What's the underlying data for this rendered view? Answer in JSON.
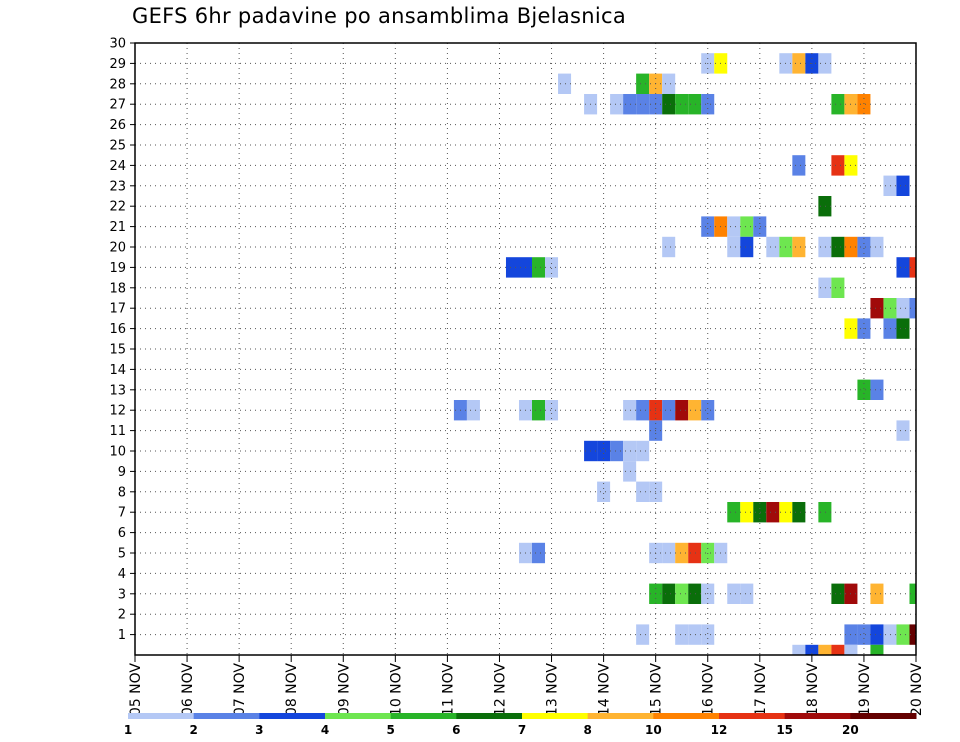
{
  "chart_data": {
    "type": "heatmap",
    "title": "GEFS 6hr padavine po ansamblima Bjelasnica",
    "xlabel": "",
    "ylabel": "",
    "x_tick_labels": [
      "05 NOV",
      "06 NOV",
      "07 NOV",
      "08 NOV",
      "09 NOV",
      "10 NOV",
      "11 NOV",
      "12 NOV",
      "13 NOV",
      "14 NOV",
      "15 NOV",
      "16 NOV",
      "17 NOV",
      "18 NOV",
      "19 NOV",
      "20 NOV"
    ],
    "y_tick_labels": [
      "1",
      "2",
      "3",
      "4",
      "5",
      "6",
      "7",
      "8",
      "9",
      "10",
      "11",
      "12",
      "13",
      "14",
      "15",
      "16",
      "17",
      "18",
      "19",
      "20",
      "21",
      "22",
      "23",
      "24",
      "25",
      "26",
      "27",
      "28",
      "29",
      "30"
    ],
    "xlim_days": [
      5,
      20
    ],
    "ylim": [
      0,
      30
    ],
    "time_step_hours": 6,
    "grid": true,
    "legend_position": "bottom",
    "colorbar": {
      "labels": [
        "1",
        "2",
        "3",
        "4",
        "5",
        "6",
        "7",
        "8",
        "10",
        "12",
        "15",
        "20"
      ],
      "colors": [
        "#b4c8f5",
        "#5a82e6",
        "#1446dc",
        "#6ee650",
        "#28b428",
        "#0a6e0a",
        "#ffff00",
        "#ffb432",
        "#ff8200",
        "#e63214",
        "#a00a0a",
        "#640000"
      ]
    },
    "cells": [
      {
        "day": 16.0,
        "member": 29,
        "level": 1
      },
      {
        "day": 16.25,
        "member": 29,
        "level": 7
      },
      {
        "day": 17.5,
        "member": 29,
        "level": 1
      },
      {
        "day": 17.75,
        "member": 29,
        "level": 8
      },
      {
        "day": 18.0,
        "member": 29,
        "level": 3
      },
      {
        "day": 18.25,
        "member": 29,
        "level": 1
      },
      {
        "day": 13.25,
        "member": 28,
        "level": 1
      },
      {
        "day": 14.75,
        "member": 28,
        "level": 5
      },
      {
        "day": 15.0,
        "member": 28,
        "level": 8
      },
      {
        "day": 15.25,
        "member": 28,
        "level": 1
      },
      {
        "day": 13.75,
        "member": 27,
        "level": 1
      },
      {
        "day": 14.25,
        "member": 27,
        "level": 1
      },
      {
        "day": 14.5,
        "member": 27,
        "level": 2
      },
      {
        "day": 14.75,
        "member": 27,
        "level": 2
      },
      {
        "day": 15.0,
        "member": 27,
        "level": 2
      },
      {
        "day": 15.25,
        "member": 27,
        "level": 6
      },
      {
        "day": 15.5,
        "member": 27,
        "level": 5
      },
      {
        "day": 15.75,
        "member": 27,
        "level": 5
      },
      {
        "day": 16.0,
        "member": 27,
        "level": 2
      },
      {
        "day": 18.5,
        "member": 27,
        "level": 5
      },
      {
        "day": 18.75,
        "member": 27,
        "level": 8
      },
      {
        "day": 19.0,
        "member": 27,
        "level": 9
      },
      {
        "day": 17.75,
        "member": 24,
        "level": 2
      },
      {
        "day": 18.5,
        "member": 24,
        "level": 10
      },
      {
        "day": 18.75,
        "member": 24,
        "level": 7
      },
      {
        "day": 19.5,
        "member": 23,
        "level": 1
      },
      {
        "day": 19.75,
        "member": 23,
        "level": 3
      },
      {
        "day": 18.25,
        "member": 22,
        "level": 6
      },
      {
        "day": 16.0,
        "member": 21,
        "level": 2
      },
      {
        "day": 16.25,
        "member": 21,
        "level": 9
      },
      {
        "day": 16.5,
        "member": 21,
        "level": 1
      },
      {
        "day": 16.75,
        "member": 21,
        "level": 4
      },
      {
        "day": 17.0,
        "member": 21,
        "level": 2
      },
      {
        "day": 15.25,
        "member": 20,
        "level": 1
      },
      {
        "day": 16.5,
        "member": 20,
        "level": 1
      },
      {
        "day": 16.75,
        "member": 20,
        "level": 3
      },
      {
        "day": 17.25,
        "member": 20,
        "level": 1
      },
      {
        "day": 17.5,
        "member": 20,
        "level": 4
      },
      {
        "day": 17.75,
        "member": 20,
        "level": 8
      },
      {
        "day": 18.25,
        "member": 20,
        "level": 1
      },
      {
        "day": 18.5,
        "member": 20,
        "level": 6
      },
      {
        "day": 18.75,
        "member": 20,
        "level": 9
      },
      {
        "day": 19.0,
        "member": 20,
        "level": 2
      },
      {
        "day": 19.25,
        "member": 20,
        "level": 1
      },
      {
        "day": 12.25,
        "member": 19,
        "level": 3
      },
      {
        "day": 12.5,
        "member": 19,
        "level": 3
      },
      {
        "day": 12.75,
        "member": 19,
        "level": 5
      },
      {
        "day": 13.0,
        "member": 19,
        "level": 1
      },
      {
        "day": 19.75,
        "member": 19,
        "level": 3
      },
      {
        "day": 20.0,
        "member": 19,
        "level": 10
      },
      {
        "day": 18.25,
        "member": 18,
        "level": 1
      },
      {
        "day": 18.5,
        "member": 18,
        "level": 4
      },
      {
        "day": 19.25,
        "member": 17,
        "level": 11
      },
      {
        "day": 19.5,
        "member": 17,
        "level": 4
      },
      {
        "day": 19.75,
        "member": 17,
        "level": 1
      },
      {
        "day": 20.0,
        "member": 17,
        "level": 2
      },
      {
        "day": 18.75,
        "member": 16,
        "level": 7
      },
      {
        "day": 19.0,
        "member": 16,
        "level": 2
      },
      {
        "day": 19.5,
        "member": 16,
        "level": 2
      },
      {
        "day": 19.75,
        "member": 16,
        "level": 6
      },
      {
        "day": 19.0,
        "member": 13,
        "level": 5
      },
      {
        "day": 19.25,
        "member": 13,
        "level": 2
      },
      {
        "day": 11.25,
        "member": 12,
        "level": 2
      },
      {
        "day": 11.5,
        "member": 12,
        "level": 1
      },
      {
        "day": 12.5,
        "member": 12,
        "level": 1
      },
      {
        "day": 12.75,
        "member": 12,
        "level": 5
      },
      {
        "day": 13.0,
        "member": 12,
        "level": 1
      },
      {
        "day": 14.5,
        "member": 12,
        "level": 1
      },
      {
        "day": 14.75,
        "member": 12,
        "level": 2
      },
      {
        "day": 15.0,
        "member": 12,
        "level": 10
      },
      {
        "day": 15.25,
        "member": 12,
        "level": 2
      },
      {
        "day": 15.5,
        "member": 12,
        "level": 11
      },
      {
        "day": 15.75,
        "member": 12,
        "level": 8
      },
      {
        "day": 16.0,
        "member": 12,
        "level": 2
      },
      {
        "day": 15.0,
        "member": 11,
        "level": 2
      },
      {
        "day": 19.75,
        "member": 11,
        "level": 1
      },
      {
        "day": 13.75,
        "member": 10,
        "level": 3
      },
      {
        "day": 14.0,
        "member": 10,
        "level": 3
      },
      {
        "day": 14.25,
        "member": 10,
        "level": 2
      },
      {
        "day": 14.5,
        "member": 10,
        "level": 1
      },
      {
        "day": 14.75,
        "member": 10,
        "level": 1
      },
      {
        "day": 14.5,
        "member": 9,
        "level": 1
      },
      {
        "day": 14.0,
        "member": 8,
        "level": 1
      },
      {
        "day": 14.75,
        "member": 8,
        "level": 1
      },
      {
        "day": 15.0,
        "member": 8,
        "level": 1
      },
      {
        "day": 16.5,
        "member": 7,
        "level": 5
      },
      {
        "day": 16.75,
        "member": 7,
        "level": 7
      },
      {
        "day": 17.0,
        "member": 7,
        "level": 6
      },
      {
        "day": 17.25,
        "member": 7,
        "level": 11
      },
      {
        "day": 17.5,
        "member": 7,
        "level": 7
      },
      {
        "day": 17.75,
        "member": 7,
        "level": 6
      },
      {
        "day": 18.25,
        "member": 7,
        "level": 5
      },
      {
        "day": 12.5,
        "member": 5,
        "level": 1
      },
      {
        "day": 12.75,
        "member": 5,
        "level": 2
      },
      {
        "day": 15.0,
        "member": 5,
        "level": 1
      },
      {
        "day": 15.25,
        "member": 5,
        "level": 1
      },
      {
        "day": 15.5,
        "member": 5,
        "level": 8
      },
      {
        "day": 15.75,
        "member": 5,
        "level": 10
      },
      {
        "day": 16.0,
        "member": 5,
        "level": 4
      },
      {
        "day": 16.25,
        "member": 5,
        "level": 1
      },
      {
        "day": 15.0,
        "member": 3,
        "level": 5
      },
      {
        "day": 15.25,
        "member": 3,
        "level": 6
      },
      {
        "day": 15.5,
        "member": 3,
        "level": 4
      },
      {
        "day": 15.75,
        "member": 3,
        "level": 6
      },
      {
        "day": 16.0,
        "member": 3,
        "level": 1
      },
      {
        "day": 16.5,
        "member": 3,
        "level": 1
      },
      {
        "day": 16.75,
        "member": 3,
        "level": 1
      },
      {
        "day": 18.5,
        "member": 3,
        "level": 6
      },
      {
        "day": 18.75,
        "member": 3,
        "level": 11
      },
      {
        "day": 19.25,
        "member": 3,
        "level": 8
      },
      {
        "day": 20.0,
        "member": 3,
        "level": 5
      },
      {
        "day": 14.75,
        "member": 1,
        "level": 1
      },
      {
        "day": 15.5,
        "member": 1,
        "level": 1
      },
      {
        "day": 15.75,
        "member": 1,
        "level": 1
      },
      {
        "day": 16.0,
        "member": 1,
        "level": 1
      },
      {
        "day": 18.75,
        "member": 1,
        "level": 2
      },
      {
        "day": 19.0,
        "member": 1,
        "level": 2
      },
      {
        "day": 19.25,
        "member": 1,
        "level": 3
      },
      {
        "day": 19.5,
        "member": 1,
        "level": 1
      },
      {
        "day": 19.75,
        "member": 1,
        "level": 4
      },
      {
        "day": 20.0,
        "member": 1,
        "level": 12
      },
      {
        "day": 17.75,
        "member": 0,
        "level": 1
      },
      {
        "day": 18.0,
        "member": 0,
        "level": 3
      },
      {
        "day": 18.25,
        "member": 0,
        "level": 8
      },
      {
        "day": 18.5,
        "member": 0,
        "level": 10
      },
      {
        "day": 18.75,
        "member": 0,
        "level": 1
      },
      {
        "day": 19.25,
        "member": 0,
        "level": 5
      }
    ]
  }
}
